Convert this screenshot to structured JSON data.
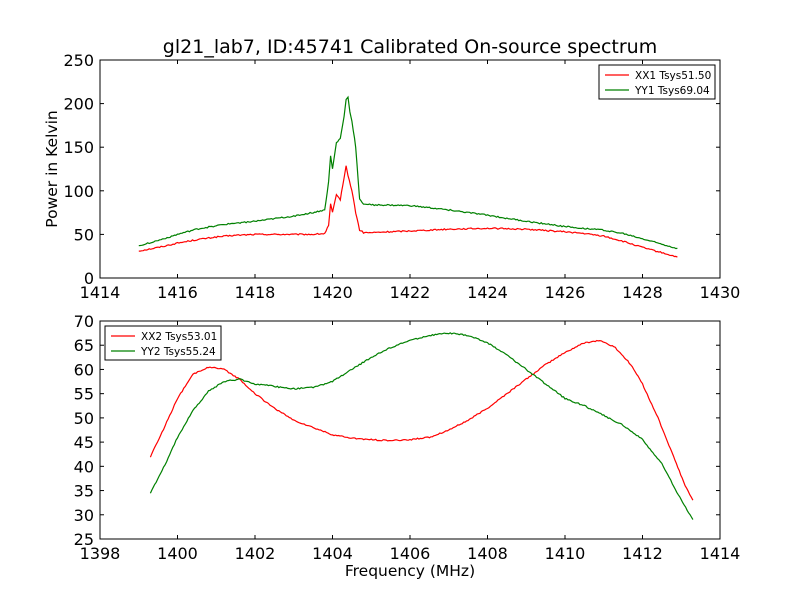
{
  "chart_data": [
    {
      "type": "line",
      "title": "gl21_lab7, ID:45741 Calibrated On-source spectrum",
      "xlabel": "",
      "ylabel": "Power in Kelvin",
      "xlim": [
        1414,
        1430
      ],
      "ylim": [
        0,
        250
      ],
      "xticks": [
        "1414",
        "1416",
        "1418",
        "1420",
        "1422",
        "1424",
        "1426",
        "1428",
        "1430"
      ],
      "yticks": [
        "0",
        "50",
        "100",
        "150",
        "200",
        "250"
      ],
      "legend_position": "top-right",
      "grid": false,
      "series": [
        {
          "name": "XX1 Tsys51.50",
          "color": "#ff0000",
          "points": [
            [
              1415.0,
              31
            ],
            [
              1415.5,
              35
            ],
            [
              1416.0,
              40
            ],
            [
              1416.5,
              44
            ],
            [
              1417.0,
              47
            ],
            [
              1417.5,
              49
            ],
            [
              1418.0,
              50
            ],
            [
              1418.5,
              50
            ],
            [
              1419.0,
              50
            ],
            [
              1419.5,
              50
            ],
            [
              1419.8,
              51
            ],
            [
              1419.9,
              60
            ],
            [
              1419.95,
              85
            ],
            [
              1420.0,
              75
            ],
            [
              1420.1,
              95
            ],
            [
              1420.2,
              90
            ],
            [
              1420.3,
              115
            ],
            [
              1420.35,
              128
            ],
            [
              1420.4,
              118
            ],
            [
              1420.5,
              100
            ],
            [
              1420.6,
              75
            ],
            [
              1420.7,
              55
            ],
            [
              1420.8,
              52
            ],
            [
              1421.0,
              52
            ],
            [
              1422.0,
              54
            ],
            [
              1423.0,
              56
            ],
            [
              1424.0,
              57
            ],
            [
              1425.0,
              56
            ],
            [
              1426.0,
              53
            ],
            [
              1426.5,
              51
            ],
            [
              1427.0,
              48
            ],
            [
              1427.5,
              42
            ],
            [
              1428.0,
              35
            ],
            [
              1428.5,
              29
            ],
            [
              1428.9,
              24
            ]
          ]
        },
        {
          "name": "YY1 Tsys69.04",
          "color": "#008000",
          "points": [
            [
              1415.0,
              37
            ],
            [
              1415.5,
              43
            ],
            [
              1416.0,
              50
            ],
            [
              1416.5,
              56
            ],
            [
              1417.0,
              60
            ],
            [
              1417.5,
              63
            ],
            [
              1418.0,
              65
            ],
            [
              1418.5,
              68
            ],
            [
              1419.0,
              71
            ],
            [
              1419.5,
              75
            ],
            [
              1419.8,
              78
            ],
            [
              1419.9,
              110
            ],
            [
              1419.95,
              140
            ],
            [
              1420.0,
              125
            ],
            [
              1420.1,
              155
            ],
            [
              1420.2,
              160
            ],
            [
              1420.3,
              185
            ],
            [
              1420.35,
              205
            ],
            [
              1420.4,
              208
            ],
            [
              1420.45,
              190
            ],
            [
              1420.5,
              180
            ],
            [
              1420.6,
              150
            ],
            [
              1420.7,
              90
            ],
            [
              1420.8,
              85
            ],
            [
              1421.0,
              84
            ],
            [
              1422.0,
              83
            ],
            [
              1423.0,
              78
            ],
            [
              1424.0,
              72
            ],
            [
              1425.0,
              65
            ],
            [
              1426.0,
              59
            ],
            [
              1427.0,
              55
            ],
            [
              1427.5,
              51
            ],
            [
              1428.0,
              45
            ],
            [
              1428.5,
              39
            ],
            [
              1428.9,
              34
            ]
          ]
        }
      ]
    },
    {
      "type": "line",
      "title": "",
      "xlabel": "Frequency (MHz)",
      "ylabel": "",
      "xlim": [
        1398,
        1414
      ],
      "ylim": [
        25,
        70
      ],
      "xticks": [
        "1398",
        "1400",
        "1402",
        "1404",
        "1406",
        "1408",
        "1410",
        "1412",
        "1414"
      ],
      "yticks": [
        "25",
        "30",
        "35",
        "40",
        "45",
        "50",
        "55",
        "60",
        "65",
        "70"
      ],
      "legend_position": "top-left",
      "grid": false,
      "series": [
        {
          "name": "XX2 Tsys53.01",
          "color": "#ff0000",
          "points": [
            [
              1399.3,
              42
            ],
            [
              1399.6,
              47
            ],
            [
              1400.0,
              54
            ],
            [
              1400.4,
              59
            ],
            [
              1400.8,
              60.5
            ],
            [
              1401.2,
              60
            ],
            [
              1401.6,
              58
            ],
            [
              1402.0,
              55
            ],
            [
              1402.5,
              52
            ],
            [
              1403.0,
              49.5
            ],
            [
              1403.5,
              48
            ],
            [
              1404.0,
              46.5
            ],
            [
              1404.5,
              45.8
            ],
            [
              1405.0,
              45.5
            ],
            [
              1405.5,
              45.3
            ],
            [
              1406.0,
              45.5
            ],
            [
              1406.5,
              46
            ],
            [
              1407.0,
              47.5
            ],
            [
              1407.5,
              49.5
            ],
            [
              1408.0,
              52
            ],
            [
              1408.5,
              55
            ],
            [
              1409.0,
              58
            ],
            [
              1409.5,
              61
            ],
            [
              1410.0,
              63.5
            ],
            [
              1410.5,
              65.5
            ],
            [
              1410.9,
              66
            ],
            [
              1411.3,
              64.5
            ],
            [
              1411.7,
              61
            ],
            [
              1412.0,
              57
            ],
            [
              1412.4,
              50
            ],
            [
              1412.8,
              42
            ],
            [
              1413.1,
              36
            ],
            [
              1413.3,
              33
            ]
          ]
        },
        {
          "name": "YY2 Tsys55.24",
          "color": "#008000",
          "points": [
            [
              1399.3,
              34.5
            ],
            [
              1399.6,
              39
            ],
            [
              1400.0,
              46
            ],
            [
              1400.4,
              51.5
            ],
            [
              1400.8,
              55.5
            ],
            [
              1401.2,
              57.5
            ],
            [
              1401.6,
              58
            ],
            [
              1402.0,
              57
            ],
            [
              1402.5,
              56.5
            ],
            [
              1403.0,
              56
            ],
            [
              1403.5,
              56.3
            ],
            [
              1404.0,
              57.5
            ],
            [
              1404.5,
              60
            ],
            [
              1405.0,
              62.5
            ],
            [
              1405.5,
              64.5
            ],
            [
              1406.0,
              66
            ],
            [
              1406.5,
              67
            ],
            [
              1407.0,
              67.5
            ],
            [
              1407.5,
              67
            ],
            [
              1408.0,
              65.5
            ],
            [
              1408.5,
              63
            ],
            [
              1409.0,
              60
            ],
            [
              1409.5,
              57
            ],
            [
              1410.0,
              54
            ],
            [
              1410.5,
              52.5
            ],
            [
              1411.0,
              50.5
            ],
            [
              1411.5,
              48.5
            ],
            [
              1412.0,
              45.5
            ],
            [
              1412.5,
              40.5
            ],
            [
              1413.0,
              33
            ],
            [
              1413.3,
              29
            ]
          ]
        }
      ]
    }
  ]
}
